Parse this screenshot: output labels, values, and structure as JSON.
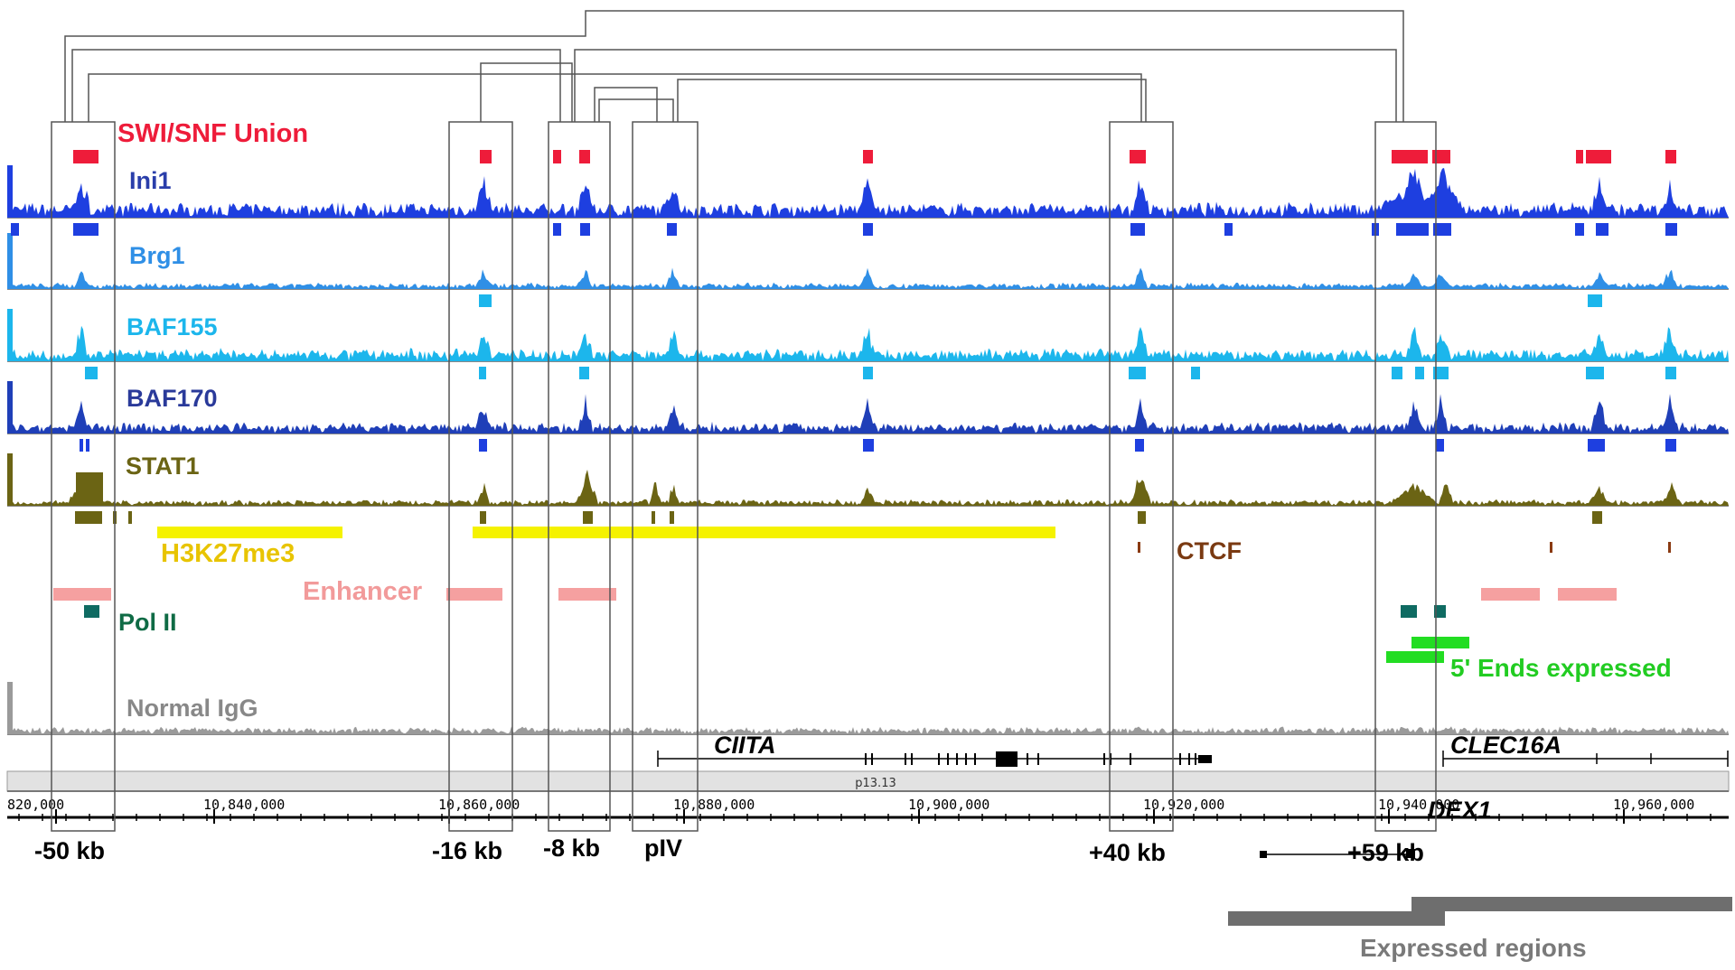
{
  "tracks": {
    "swisnf": {
      "label": "SWI/SNF Union",
      "color": "#ee1c3a"
    },
    "ini1": {
      "label": "Ini1",
      "color": "#1e3fe0"
    },
    "brg1": {
      "label": "Brg1",
      "color": "#2f8fe6"
    },
    "baf155": {
      "label": "BAF155",
      "color": "#1cb6ec"
    },
    "baf170": {
      "label": "BAF170",
      "color": "#1f3fb8"
    },
    "stat1": {
      "label": "STAT1",
      "color": "#6b6414"
    },
    "h3k27me3": {
      "label": "H3K27me3",
      "color": "#f5f200"
    },
    "ctcf": {
      "label": "CTCF",
      "color": "#8a3a12"
    },
    "enhancer": {
      "label": "Enhancer",
      "color": "#f5a0a0"
    },
    "polii": {
      "label": "Pol II",
      "color": "#0f6b62"
    },
    "fiveends": {
      "label": "5' Ends expressed",
      "color": "#22dd22"
    },
    "igg": {
      "label": "Normal IgG",
      "color": "#9a9a9a"
    }
  },
  "genes": {
    "ciita": "CIITA",
    "clec16a": "CLEC16A",
    "dex1": "DEX1"
  },
  "chrom": {
    "band": "p13.13"
  },
  "axis": {
    "ticks": [
      "820,000",
      "10,840,000",
      "10,860,000",
      "10,880,000",
      "10,900,000",
      "10,920,000",
      "10,940,000",
      "10,960,000"
    ]
  },
  "regions": [
    "-50 kb",
    "-16 kb",
    "-8 kb",
    "pIV",
    "+40 kb",
    "+59 kb"
  ],
  "expressed": {
    "label": "Expressed regions"
  }
}
